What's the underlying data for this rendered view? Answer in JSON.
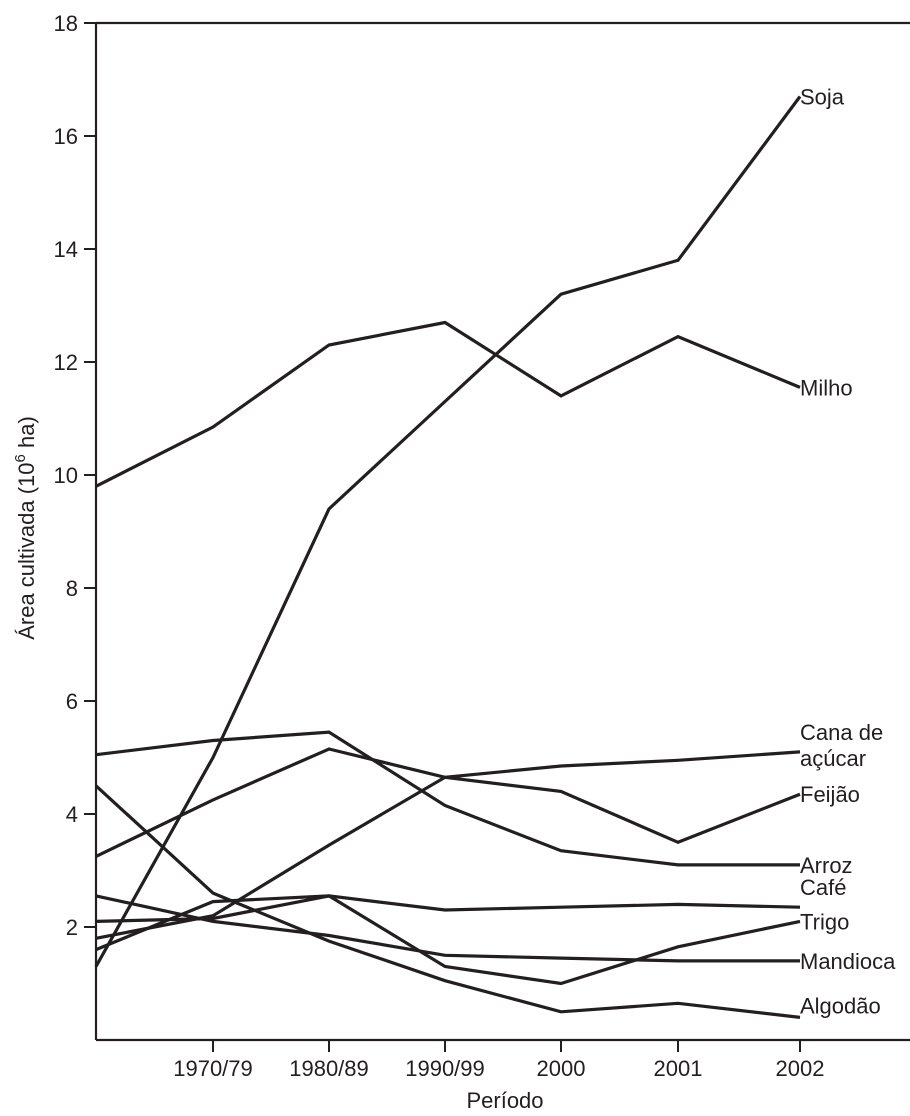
{
  "chart_data": {
    "type": "line",
    "title": "",
    "xlabel": "Período",
    "ylabel_main": "Área cultivada (10",
    "ylabel_sup": "6",
    "ylabel_unit": " ha)",
    "x_categories": [
      "",
      "1970/79",
      "1980/89",
      "1990/99",
      "2000",
      "2001",
      "2002"
    ],
    "ylim": [
      0,
      18
    ],
    "y_ticks": [
      2,
      4,
      6,
      8,
      10,
      12,
      14,
      16,
      18
    ],
    "y_tick_labels": [
      "2",
      "4",
      "6",
      "8",
      "10",
      "12",
      "14",
      "16",
      "18"
    ],
    "grid": false,
    "series": [
      {
        "name": "Soja",
        "label_lines": [
          "Soja"
        ],
        "values": [
          1.3,
          5.0,
          9.4,
          11.3,
          13.2,
          13.8,
          16.7
        ]
      },
      {
        "name": "Milho",
        "label_lines": [
          "Milho"
        ],
        "values": [
          9.8,
          10.85,
          12.3,
          12.7,
          11.4,
          12.45,
          11.55
        ]
      },
      {
        "name": "Cana de açúcar",
        "label_lines": [
          "Cana de",
          "açúcar"
        ],
        "values": [
          1.8,
          2.2,
          3.45,
          4.65,
          4.85,
          4.95,
          5.1
        ]
      },
      {
        "name": "Feijão",
        "label_lines": [
          "Feijão"
        ],
        "values": [
          3.25,
          4.25,
          5.15,
          4.65,
          4.4,
          3.5,
          4.35
        ]
      },
      {
        "name": "Arroz",
        "label_lines": [
          "Arroz"
        ],
        "values": [
          5.05,
          5.3,
          5.45,
          4.15,
          3.35,
          3.1,
          3.1
        ]
      },
      {
        "name": "Café",
        "label_lines": [
          "Café"
        ],
        "values": [
          2.1,
          2.15,
          2.55,
          2.3,
          2.35,
          2.4,
          2.35
        ]
      },
      {
        "name": "Trigo",
        "label_lines": [
          "Trigo"
        ],
        "values": [
          1.6,
          2.45,
          2.55,
          1.3,
          1.0,
          1.65,
          2.1
        ]
      },
      {
        "name": "Mandioca",
        "label_lines": [
          "Mandioca"
        ],
        "values": [
          2.55,
          2.1,
          1.85,
          1.5,
          1.45,
          1.4,
          1.4
        ]
      },
      {
        "name": "Algodão",
        "label_lines": [
          "Algodão"
        ],
        "values": [
          4.5,
          2.6,
          1.75,
          1.05,
          0.5,
          0.65,
          0.4
        ]
      }
    ]
  }
}
